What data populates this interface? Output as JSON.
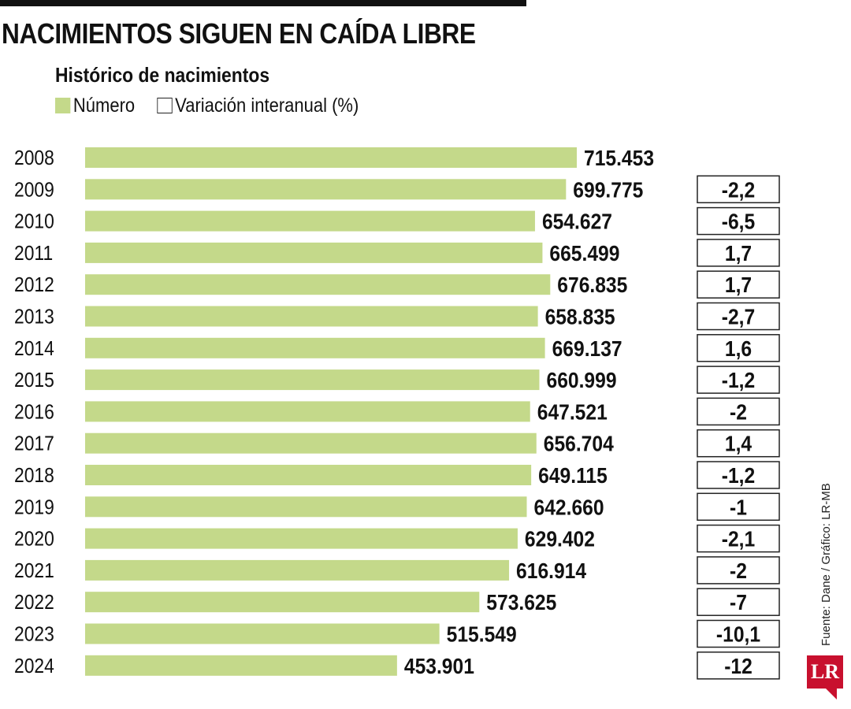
{
  "header": {
    "title": "NACIMIENTOS SIGUEN EN CAÍDA LIBRE",
    "subtitle": "Histórico de nacimientos"
  },
  "legend": {
    "number_label": "Número",
    "variation_label": "Variación interanual (%)"
  },
  "footer": {
    "source": "Fuente: Dane / Gráfico: LR-MB",
    "logo_text": "LR"
  },
  "colors": {
    "bar": "#c4d98a",
    "text": "#111111",
    "box_border": "#222222",
    "logo": "#c8102e"
  },
  "chart_data": {
    "type": "bar",
    "orientation": "horizontal",
    "title": "NACIMIENTOS SIGUEN EN CAÍDA LIBRE",
    "subtitle": "Histórico de nacimientos",
    "xlabel": "",
    "ylabel": "",
    "grid": false,
    "legend_position": "top-left",
    "categories": [
      "2008",
      "2009",
      "2010",
      "2011",
      "2012",
      "2013",
      "2014",
      "2015",
      "2016",
      "2017",
      "2018",
      "2019",
      "2020",
      "2021",
      "2022",
      "2023",
      "2024"
    ],
    "series": [
      {
        "name": "Número",
        "values": [
          715453,
          699775,
          654627,
          665499,
          676835,
          658835,
          669137,
          660999,
          647521,
          656704,
          649115,
          642660,
          629402,
          616914,
          573625,
          515549,
          453901
        ],
        "labels": [
          "715.453",
          "699.775",
          "654.627",
          "665.499",
          "676.835",
          "658.835",
          "669.137",
          "660.999",
          "647.521",
          "656.704",
          "649.115",
          "642.660",
          "629.402",
          "616.914",
          "573.625",
          "515.549",
          "453.901"
        ]
      },
      {
        "name": "Variación interanual (%)",
        "values": [
          null,
          -2.2,
          -6.5,
          1.7,
          1.7,
          -2.7,
          1.6,
          -1.2,
          -2,
          1.4,
          -1.2,
          -1,
          -2.1,
          -2,
          -7,
          -10.1,
          -12
        ],
        "labels": [
          "",
          "-2,2",
          "-6,5",
          "1,7",
          "1,7",
          "-2,7",
          "1,6",
          "-1,2",
          "-2",
          "1,4",
          "-1,2",
          "-1",
          "-2,1",
          "-2",
          "-7",
          "-10,1",
          "-12"
        ]
      }
    ]
  }
}
